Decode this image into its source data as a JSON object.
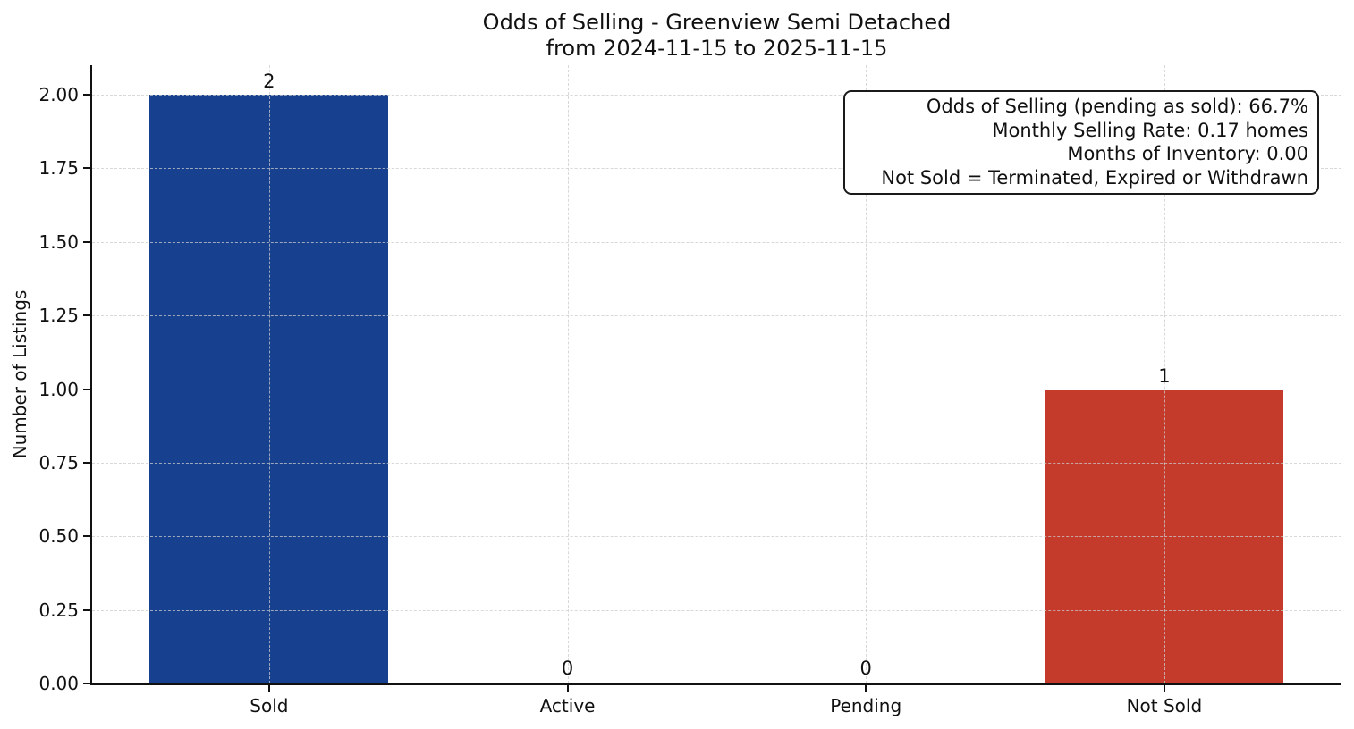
{
  "chart_data": {
    "type": "bar",
    "title_line1": "Odds of Selling - Greenview Semi Detached",
    "title_line2": "from 2024-11-15 to 2025-11-15",
    "ylabel": "Number of Listings",
    "categories": [
      "Sold",
      "Active",
      "Pending",
      "Not Sold"
    ],
    "values": [
      2,
      0,
      0,
      1
    ],
    "value_labels": [
      "2",
      "0",
      "0",
      "1"
    ],
    "bar_colors": [
      "#17418f",
      null,
      null,
      "#c43b2c"
    ],
    "yticks": [
      "0.00",
      "0.25",
      "0.50",
      "0.75",
      "1.00",
      "1.25",
      "1.50",
      "1.75",
      "2.00"
    ],
    "ylim": [
      0,
      2.1
    ],
    "grid": "dashed light-gray gridlines, horizontal at y ticks and vertical at category centers",
    "legend": "none",
    "text_color": "#111111",
    "annotation_lines": [
      "Odds of Selling (pending as sold): 66.7%",
      "Monthly Selling Rate: 0.17 homes",
      "Months of Inventory: 0.00",
      "Not Sold = Terminated, Expired or Withdrawn"
    ]
  }
}
